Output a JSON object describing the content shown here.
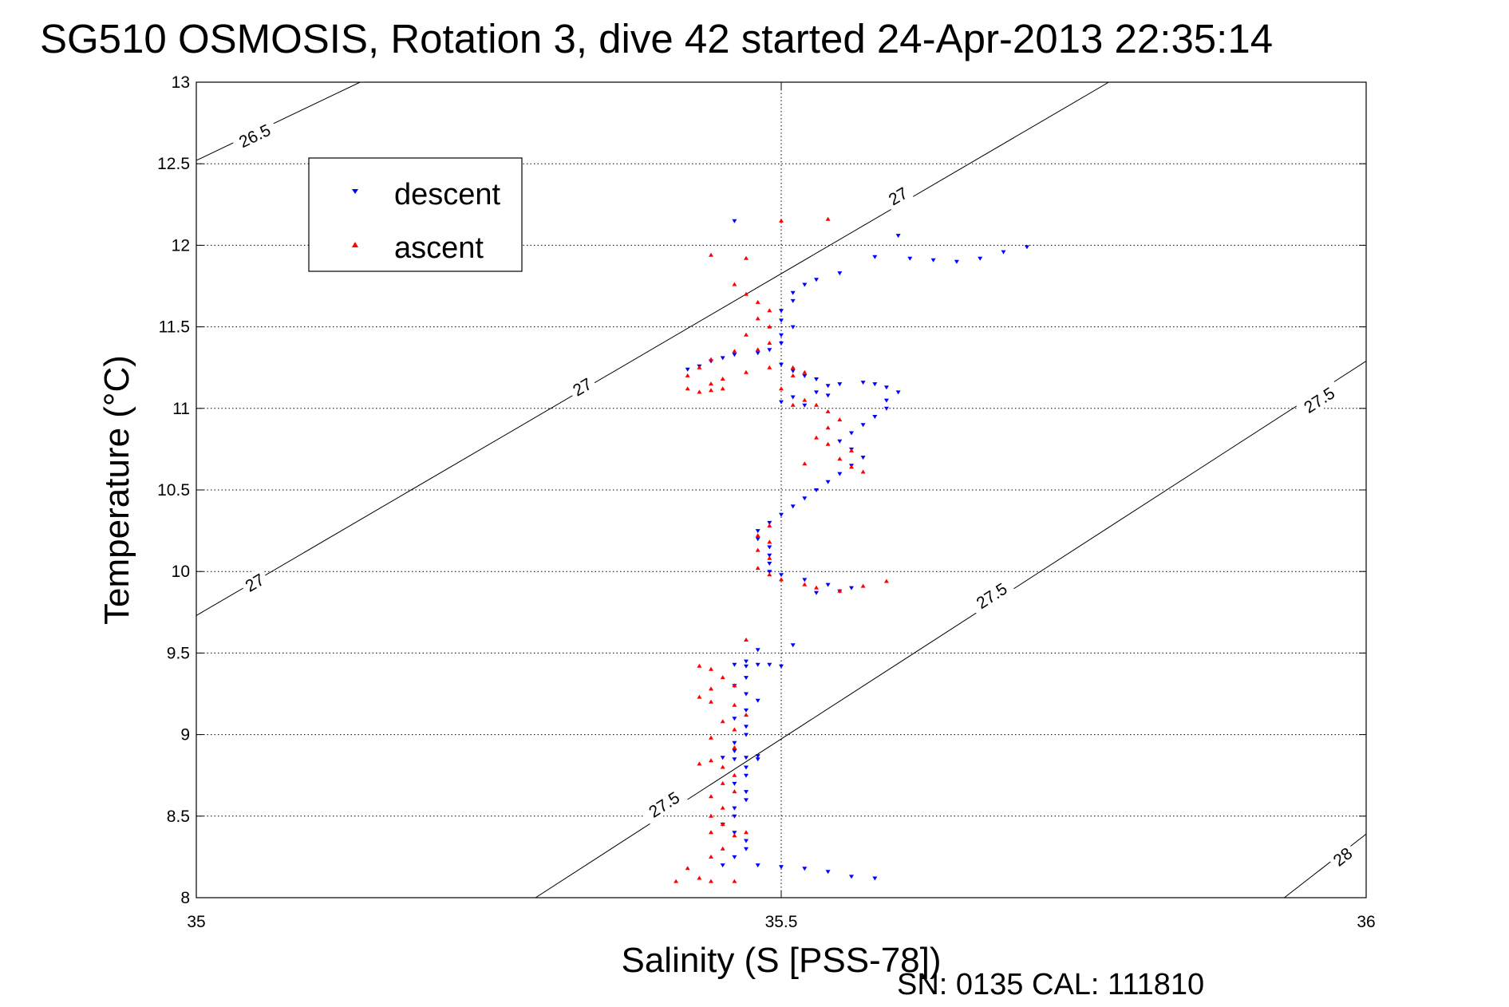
{
  "chart_data": {
    "type": "scatter",
    "title": "SG510 OSMOSIS, Rotation 3, dive 42 started 24-Apr-2013 22:35:14",
    "xlabel": "Salinity (S [PSS-78])",
    "ylabel": "Temperature (°C)",
    "xlim": [
      35,
      36
    ],
    "ylim": [
      8,
      13
    ],
    "x_ticks": [
      35,
      35.5,
      36
    ],
    "x_tick_labels": [
      "35",
      "35.5",
      "36"
    ],
    "y_ticks": [
      8,
      8.5,
      9,
      9.5,
      10,
      10.5,
      11,
      11.5,
      12,
      12.5,
      13
    ],
    "y_tick_labels": [
      "8",
      "8.5",
      "9",
      "9.5",
      "10",
      "10.5",
      "11",
      "11.5",
      "12",
      "12.5",
      "13"
    ],
    "grid": true,
    "legend_position": "top-left",
    "footer_text": "SN: 0135  CAL: 111810",
    "density_contours": [
      {
        "label": "26.5",
        "points": [
          [
            35,
            12.52
          ],
          [
            35.14,
            13.0
          ]
        ],
        "labels_at": [
          [
            35.05,
            12.67
          ]
        ]
      },
      {
        "label": "27",
        "points": [
          [
            35,
            9.73
          ],
          [
            35.78,
            13.0
          ]
        ],
        "labels_at": [
          [
            35.05,
            9.93
          ],
          [
            35.33,
            11.13
          ],
          [
            35.6,
            12.3
          ]
        ]
      },
      {
        "label": "27.5",
        "points": [
          [
            35.29,
            8.0
          ],
          [
            36,
            11.29
          ]
        ],
        "labels_at": [
          [
            35.4,
            8.57
          ],
          [
            35.68,
            9.85
          ],
          [
            35.96,
            11.05
          ]
        ]
      },
      {
        "label": "28",
        "points": [
          [
            35.93,
            8.0
          ],
          [
            36,
            8.39
          ]
        ],
        "labels_at": [
          [
            35.98,
            8.25
          ]
        ]
      }
    ],
    "series": [
      {
        "name": "descent",
        "color": "#0000ff",
        "marker": "triangle-down",
        "points": [
          [
            35.46,
            12.15
          ],
          [
            35.6,
            12.06
          ],
          [
            35.58,
            11.93
          ],
          [
            35.61,
            11.92
          ],
          [
            35.63,
            11.91
          ],
          [
            35.65,
            11.9
          ],
          [
            35.67,
            11.92
          ],
          [
            35.69,
            11.96
          ],
          [
            35.71,
            11.99
          ],
          [
            35.55,
            11.83
          ],
          [
            35.53,
            11.79
          ],
          [
            35.52,
            11.76
          ],
          [
            35.51,
            11.71
          ],
          [
            35.51,
            11.66
          ],
          [
            35.5,
            11.6
          ],
          [
            35.5,
            11.54
          ],
          [
            35.51,
            11.5
          ],
          [
            35.5,
            11.45
          ],
          [
            35.5,
            11.4
          ],
          [
            35.49,
            11.36
          ],
          [
            35.48,
            11.34
          ],
          [
            35.46,
            11.33
          ],
          [
            35.45,
            11.31
          ],
          [
            35.44,
            11.29
          ],
          [
            35.43,
            11.26
          ],
          [
            35.42,
            11.24
          ],
          [
            35.5,
            11.27
          ],
          [
            35.51,
            11.23
          ],
          [
            35.52,
            11.2
          ],
          [
            35.53,
            11.18
          ],
          [
            35.54,
            11.14
          ],
          [
            35.53,
            11.1
          ],
          [
            35.51,
            11.07
          ],
          [
            35.5,
            11.04
          ],
          [
            35.52,
            11.02
          ],
          [
            35.54,
            11.08
          ],
          [
            35.55,
            11.15
          ],
          [
            35.57,
            11.16
          ],
          [
            35.58,
            11.15
          ],
          [
            35.59,
            11.13
          ],
          [
            35.6,
            11.1
          ],
          [
            35.59,
            11.05
          ],
          [
            35.59,
            11.0
          ],
          [
            35.58,
            10.95
          ],
          [
            35.57,
            10.9
          ],
          [
            35.56,
            10.85
          ],
          [
            35.55,
            10.8
          ],
          [
            35.56,
            10.75
          ],
          [
            35.57,
            10.7
          ],
          [
            35.56,
            10.65
          ],
          [
            35.55,
            10.6
          ],
          [
            35.54,
            10.55
          ],
          [
            35.53,
            10.5
          ],
          [
            35.52,
            10.45
          ],
          [
            35.51,
            10.4
          ],
          [
            35.5,
            10.35
          ],
          [
            35.49,
            10.3
          ],
          [
            35.48,
            10.25
          ],
          [
            35.48,
            10.2
          ],
          [
            35.49,
            10.15
          ],
          [
            35.49,
            10.1
          ],
          [
            35.49,
            10.05
          ],
          [
            35.49,
            10.0
          ],
          [
            35.5,
            9.98
          ],
          [
            35.52,
            9.95
          ],
          [
            35.54,
            9.92
          ],
          [
            35.56,
            9.9
          ],
          [
            35.55,
            9.88
          ],
          [
            35.53,
            9.87
          ],
          [
            35.51,
            9.55
          ],
          [
            35.48,
            9.52
          ],
          [
            35.47,
            9.45
          ],
          [
            35.46,
            9.43
          ],
          [
            35.47,
            9.42
          ],
          [
            35.48,
            9.43
          ],
          [
            35.49,
            9.43
          ],
          [
            35.5,
            9.42
          ],
          [
            35.47,
            9.35
          ],
          [
            35.46,
            9.3
          ],
          [
            35.47,
            9.25
          ],
          [
            35.48,
            9.21
          ],
          [
            35.47,
            9.15
          ],
          [
            35.46,
            9.1
          ],
          [
            35.47,
            9.05
          ],
          [
            35.47,
            9.0
          ],
          [
            35.46,
            8.95
          ],
          [
            35.46,
            8.9
          ],
          [
            35.45,
            8.86
          ],
          [
            35.46,
            8.85
          ],
          [
            35.47,
            8.86
          ],
          [
            35.48,
            8.87
          ],
          [
            35.48,
            8.85
          ],
          [
            35.47,
            8.8
          ],
          [
            35.47,
            8.75
          ],
          [
            35.46,
            8.7
          ],
          [
            35.47,
            8.65
          ],
          [
            35.47,
            8.6
          ],
          [
            35.46,
            8.55
          ],
          [
            35.46,
            8.5
          ],
          [
            35.45,
            8.45
          ],
          [
            35.46,
            8.4
          ],
          [
            35.47,
            8.35
          ],
          [
            35.47,
            8.3
          ],
          [
            35.46,
            8.25
          ],
          [
            35.45,
            8.2
          ],
          [
            35.48,
            8.2
          ],
          [
            35.5,
            8.19
          ],
          [
            35.52,
            8.18
          ],
          [
            35.54,
            8.16
          ],
          [
            35.56,
            8.13
          ],
          [
            35.58,
            8.12
          ]
        ]
      },
      {
        "name": "ascent",
        "color": "#ff0000",
        "marker": "triangle-up",
        "points": [
          [
            35.5,
            12.15
          ],
          [
            35.54,
            12.16
          ],
          [
            35.44,
            11.94
          ],
          [
            35.47,
            11.92
          ],
          [
            35.46,
            11.76
          ],
          [
            35.47,
            11.7
          ],
          [
            35.48,
            11.65
          ],
          [
            35.49,
            11.6
          ],
          [
            35.48,
            11.55
          ],
          [
            35.49,
            11.5
          ],
          [
            35.47,
            11.45
          ],
          [
            35.49,
            11.4
          ],
          [
            35.48,
            11.36
          ],
          [
            35.46,
            11.35
          ],
          [
            35.44,
            11.3
          ],
          [
            35.43,
            11.25
          ],
          [
            35.42,
            11.2
          ],
          [
            35.44,
            11.15
          ],
          [
            35.45,
            11.12
          ],
          [
            35.44,
            11.11
          ],
          [
            35.43,
            11.1
          ],
          [
            35.42,
            11.12
          ],
          [
            35.45,
            11.18
          ],
          [
            35.47,
            11.22
          ],
          [
            35.49,
            11.25
          ],
          [
            35.51,
            11.25
          ],
          [
            35.52,
            11.22
          ],
          [
            35.51,
            11.2
          ],
          [
            35.5,
            11.12
          ],
          [
            35.52,
            11.05
          ],
          [
            35.53,
            11.02
          ],
          [
            35.51,
            11.02
          ],
          [
            35.54,
            10.98
          ],
          [
            35.55,
            10.93
          ],
          [
            35.54,
            10.88
          ],
          [
            35.53,
            10.82
          ],
          [
            35.54,
            10.78
          ],
          [
            35.56,
            10.74
          ],
          [
            35.55,
            10.69
          ],
          [
            35.56,
            10.64
          ],
          [
            35.57,
            10.61
          ],
          [
            35.52,
            10.66
          ],
          [
            35.49,
            10.28
          ],
          [
            35.48,
            10.22
          ],
          [
            35.49,
            10.18
          ],
          [
            35.48,
            10.13
          ],
          [
            35.49,
            10.08
          ],
          [
            35.48,
            10.02
          ],
          [
            35.49,
            9.98
          ],
          [
            35.5,
            9.95
          ],
          [
            35.52,
            9.92
          ],
          [
            35.53,
            9.9
          ],
          [
            35.55,
            9.88
          ],
          [
            35.57,
            9.91
          ],
          [
            35.59,
            9.94
          ],
          [
            35.47,
            9.58
          ],
          [
            35.43,
            9.42
          ],
          [
            35.44,
            9.4
          ],
          [
            35.45,
            9.35
          ],
          [
            35.46,
            9.3
          ],
          [
            35.44,
            9.28
          ],
          [
            35.43,
            9.23
          ],
          [
            35.44,
            9.2
          ],
          [
            35.46,
            9.18
          ],
          [
            35.47,
            9.12
          ],
          [
            35.45,
            9.08
          ],
          [
            35.46,
            9.03
          ],
          [
            35.44,
            8.98
          ],
          [
            35.46,
            8.92
          ],
          [
            35.44,
            8.84
          ],
          [
            35.43,
            8.82
          ],
          [
            35.45,
            8.8
          ],
          [
            35.46,
            8.75
          ],
          [
            35.45,
            8.7
          ],
          [
            35.46,
            8.65
          ],
          [
            35.44,
            8.62
          ],
          [
            35.45,
            8.55
          ],
          [
            35.44,
            8.5
          ],
          [
            35.45,
            8.45
          ],
          [
            35.44,
            8.4
          ],
          [
            35.46,
            8.38
          ],
          [
            35.47,
            8.4
          ],
          [
            35.45,
            8.3
          ],
          [
            35.44,
            8.25
          ],
          [
            35.42,
            8.18
          ],
          [
            35.43,
            8.12
          ],
          [
            35.41,
            8.1
          ],
          [
            35.44,
            8.1
          ],
          [
            35.46,
            8.1
          ]
        ]
      }
    ]
  }
}
